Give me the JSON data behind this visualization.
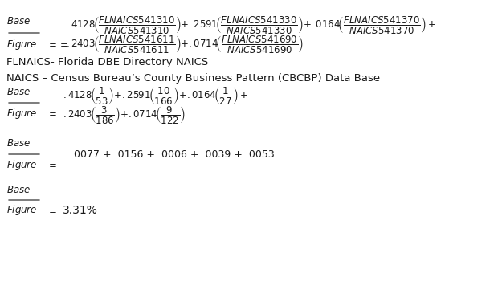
{
  "background_color": "#ffffff",
  "figsize": [
    6.2,
    3.71
  ],
  "dpi": 100,
  "text_color": "#1a1a1a",
  "label_text1": "FLNAICS- Florida DBE Directory NAICS",
  "label_text2": "NAICS – Census Bureau’s County Business Pattern (CBCBP) Data Base",
  "formula3_rhs": ".0077 + .0156 + .0006 + .0039 + .0053",
  "formula4_rhs": "3.31%"
}
